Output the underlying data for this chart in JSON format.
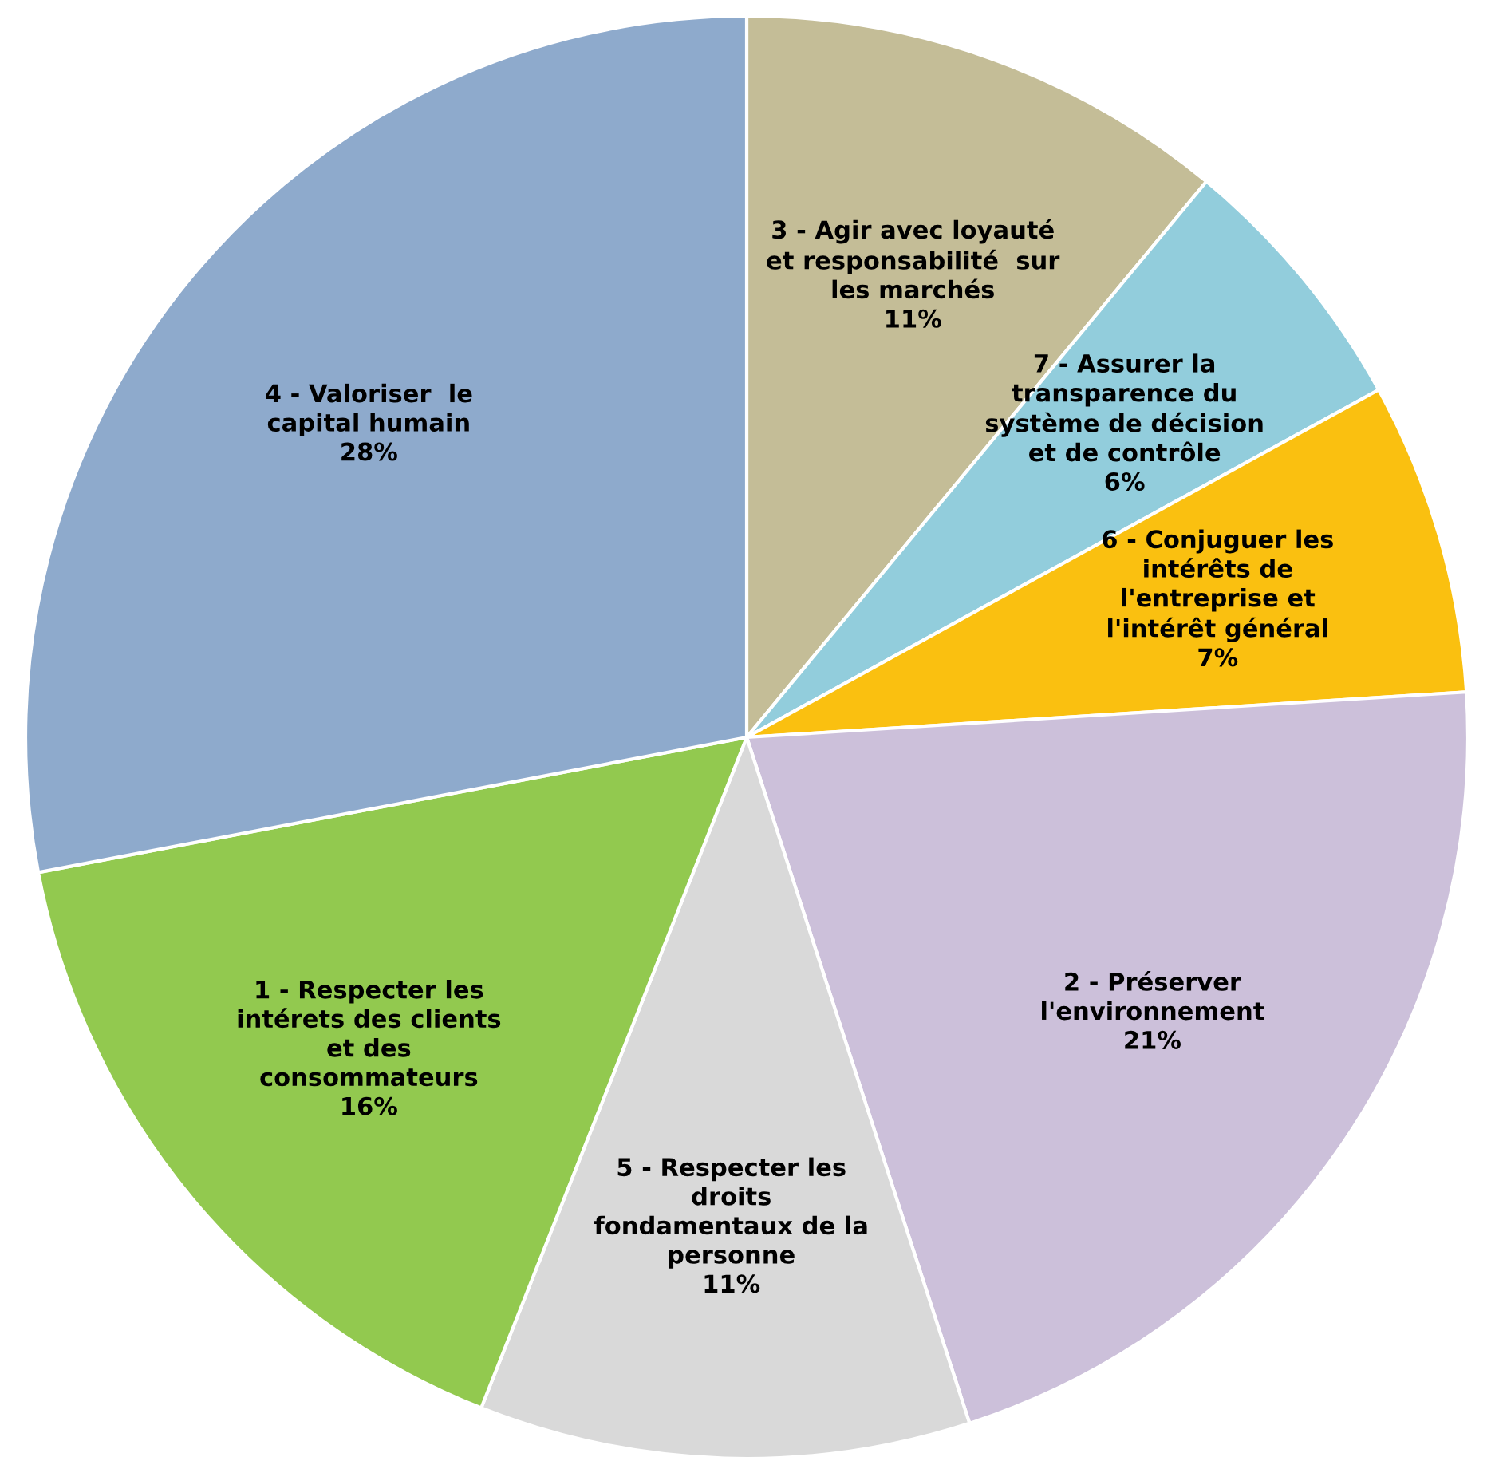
{
  "chart_data": {
    "type": "pie",
    "categories": [
      "3 - Agir avec loyauté\net responsabilité  sur\nles marchés",
      "7 - Assurer la\ntransparence du\nsystème de décision\net de contrôle",
      "6 - Conjuguer les\nintérêts de\nl'entreprise et\nl'intérêt général",
      "2 - Préserver\nl'environnement",
      "5 - Respecter les\ndroits\nfondamentaux de la\npersonne",
      "1 - Respecter les\nintérets des clients\net des\nconsommateurs",
      "4 - Valoriser  le\ncapital humain"
    ],
    "values": [
      11,
      6,
      7,
      21,
      11,
      16,
      28
    ],
    "value_labels": [
      "11%",
      "6%",
      "7%",
      "21%",
      "11%",
      "16%",
      "28%"
    ],
    "colors": [
      "#c4bd97",
      "#92cddc",
      "#fac010",
      "#ccc0da",
      "#d9d9d9",
      "#92c94f",
      "#8eaacc"
    ],
    "legend": false
  }
}
